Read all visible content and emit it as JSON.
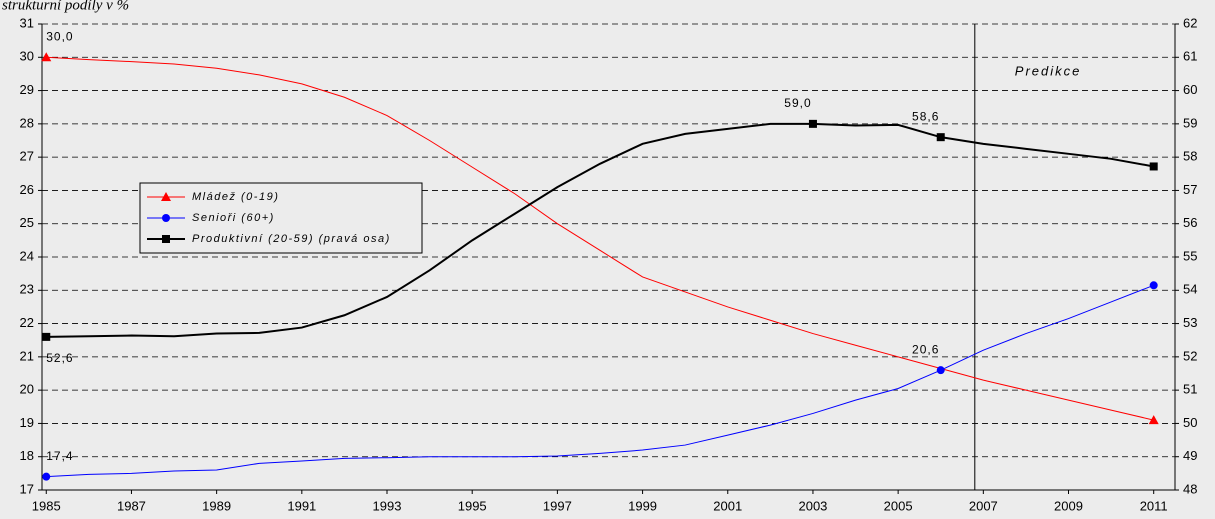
{
  "chart_data": {
    "type": "line",
    "title": "strukturní podíly v %",
    "x": [
      1985,
      1986,
      1987,
      1988,
      1989,
      1990,
      1991,
      1992,
      1993,
      1994,
      1995,
      1996,
      1997,
      1998,
      1999,
      2000,
      2001,
      2002,
      2003,
      2004,
      2005,
      2006,
      2007,
      2008,
      2009,
      2010,
      2011
    ],
    "xlim": [
      1984.9,
      2011.5
    ],
    "xticks": [
      1985,
      1987,
      1989,
      1991,
      1993,
      1995,
      1997,
      1999,
      2001,
      2003,
      2005,
      2007,
      2009,
      2011
    ],
    "ylim": [
      17,
      31
    ],
    "yticks": [
      17,
      18,
      19,
      20,
      21,
      22,
      23,
      24,
      25,
      26,
      27,
      28,
      29,
      30,
      31
    ],
    "y2lim": [
      48,
      62
    ],
    "y2ticks": [
      48,
      49,
      50,
      51,
      52,
      53,
      54,
      55,
      56,
      57,
      58,
      59,
      60,
      61,
      62
    ],
    "grid": true,
    "legend": "left",
    "annotations": [
      {
        "text": "Predikce",
        "x": 2006.8
      }
    ],
    "series": [
      {
        "name": "Mládež (0-19)",
        "color": "#ff0000",
        "marker": "triangle",
        "axis": "y",
        "values": [
          30.0,
          29.93,
          29.87,
          29.8,
          29.67,
          29.47,
          29.2,
          28.8,
          28.25,
          27.5,
          26.7,
          25.9,
          25.0,
          24.2,
          23.4,
          22.95,
          22.5,
          22.1,
          21.7,
          21.35,
          21.0,
          20.65,
          20.3,
          20.0,
          19.7,
          19.4,
          19.1
        ],
        "value_labels": [
          "30,0",
          null,
          null,
          null,
          null,
          null,
          null,
          null,
          null,
          null,
          null,
          null,
          null,
          null,
          null,
          null,
          null,
          null,
          null,
          null,
          null,
          null,
          null,
          null,
          null,
          null,
          null
        ]
      },
      {
        "name": "Senioři (60+)",
        "color": "#0000ff",
        "marker": "circle",
        "axis": "y",
        "values": [
          17.4,
          17.47,
          17.5,
          17.57,
          17.6,
          17.8,
          17.87,
          17.95,
          17.97,
          18.0,
          18.0,
          18.0,
          18.02,
          18.1,
          18.2,
          18.35,
          18.65,
          18.95,
          19.3,
          19.7,
          20.05,
          20.6,
          21.2,
          21.7,
          22.15,
          22.65,
          23.15
        ],
        "value_labels": [
          "17,4",
          null,
          null,
          null,
          null,
          null,
          null,
          null,
          null,
          null,
          null,
          null,
          null,
          null,
          null,
          null,
          null,
          null,
          null,
          null,
          null,
          "20,6",
          null,
          null,
          null,
          null,
          null
        ]
      },
      {
        "name": "Produktivní (20-59) (pravá osa)",
        "color": "#000000",
        "marker": "square",
        "axis": "y2",
        "values": [
          52.6,
          52.62,
          52.64,
          52.62,
          52.7,
          52.72,
          52.88,
          53.25,
          53.8,
          54.6,
          55.5,
          56.3,
          57.1,
          57.8,
          58.4,
          58.7,
          58.85,
          59.0,
          59.0,
          58.95,
          58.97,
          58.6,
          58.4,
          58.25,
          58.1,
          57.95,
          57.72
        ],
        "value_labels": [
          "52,6",
          null,
          null,
          null,
          null,
          null,
          null,
          null,
          null,
          null,
          null,
          null,
          null,
          null,
          null,
          null,
          null,
          null,
          "59,0",
          null,
          null,
          "58,6",
          null,
          null,
          null,
          null,
          null
        ]
      }
    ]
  }
}
